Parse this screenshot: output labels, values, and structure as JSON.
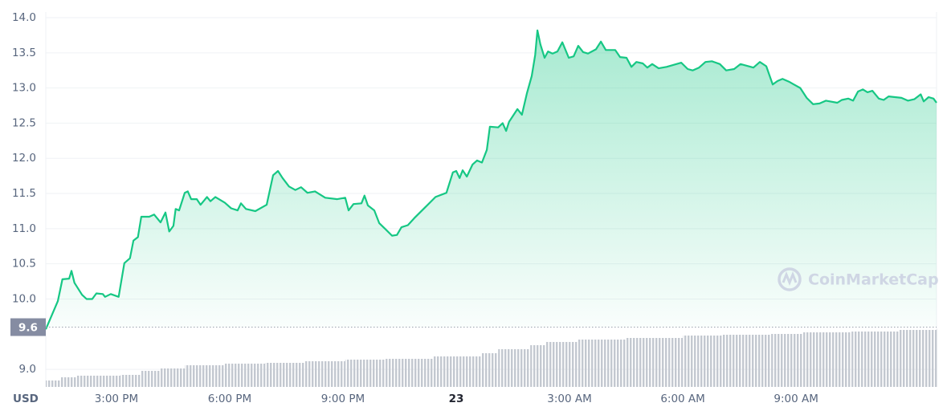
{
  "chart_data": {
    "type": "line",
    "y_unit": "USD",
    "watermark": "CoinMarketCap",
    "color": "#16c784",
    "baseline": 9.6,
    "x": [
      13.13,
      13.45,
      13.57,
      13.75,
      13.81,
      13.89,
      14.09,
      14.21,
      14.36,
      14.47,
      14.64,
      14.7,
      14.85,
      15.06,
      15.21,
      15.36,
      15.45,
      15.57,
      15.66,
      15.87,
      16.0,
      16.17,
      16.3,
      16.4,
      16.51,
      16.57,
      16.66,
      16.81,
      16.89,
      16.98,
      17.13,
      17.23,
      17.4,
      17.49,
      17.62,
      17.87,
      18.04,
      18.21,
      18.3,
      18.43,
      18.68,
      18.98,
      19.15,
      19.28,
      19.4,
      19.57,
      19.74,
      19.89,
      20.06,
      20.26,
      20.53,
      20.85,
      21.06,
      21.15,
      21.28,
      21.49,
      21.57,
      21.66,
      21.83,
      21.96,
      22.13,
      22.3,
      22.43,
      22.55,
      22.72,
      22.89,
      23.19,
      23.45,
      23.74,
      23.91,
      24.0,
      24.09,
      24.17,
      24.28,
      24.43,
      24.55,
      24.68,
      24.81,
      24.89,
      25.11,
      25.23,
      25.32,
      25.4,
      25.62,
      25.74,
      25.87,
      26.0,
      26.09,
      26.15,
      26.23,
      26.34,
      26.43,
      26.55,
      26.68,
      26.81,
      26.98,
      27.11,
      27.23,
      27.36,
      27.49,
      27.7,
      27.83,
      27.96,
      28.21,
      28.34,
      28.51,
      28.64,
      28.77,
      28.94,
      29.06,
      29.19,
      29.36,
      29.57,
      29.96,
      30.13,
      30.26,
      30.43,
      30.6,
      30.77,
      30.98,
      31.15,
      31.36,
      31.53,
      31.87,
      32.04,
      32.21,
      32.38,
      32.51,
      32.64,
      32.81,
      32.94,
      33.11,
      33.28,
      33.45,
      33.62,
      33.79,
      34.09,
      34.21,
      34.38,
      34.51,
      34.64,
      34.77,
      34.89,
      35.02,
      35.19,
      35.32,
      35.45,
      35.79,
      35.96,
      36.13,
      36.3,
      36.38,
      36.51,
      36.64,
      36.72
    ],
    "values": [
      9.57,
      9.97,
      10.28,
      10.29,
      10.4,
      10.23,
      10.06,
      10.0,
      10.0,
      10.08,
      10.07,
      10.03,
      10.07,
      10.03,
      10.51,
      10.58,
      10.83,
      10.88,
      11.17,
      11.17,
      11.2,
      11.09,
      11.23,
      10.96,
      11.04,
      11.28,
      11.26,
      11.51,
      11.53,
      11.42,
      11.42,
      11.34,
      11.45,
      11.39,
      11.45,
      11.37,
      11.29,
      11.26,
      11.36,
      11.28,
      11.25,
      11.34,
      11.76,
      11.82,
      11.72,
      11.6,
      11.55,
      11.59,
      11.51,
      11.53,
      11.44,
      11.42,
      11.44,
      11.26,
      11.35,
      11.36,
      11.47,
      11.33,
      11.26,
      11.08,
      10.99,
      10.9,
      10.91,
      11.02,
      11.05,
      11.15,
      11.31,
      11.45,
      11.51,
      11.8,
      11.82,
      11.72,
      11.83,
      11.74,
      11.91,
      11.97,
      11.94,
      12.12,
      12.45,
      12.44,
      12.5,
      12.39,
      12.52,
      12.7,
      12.62,
      12.92,
      13.17,
      13.47,
      13.82,
      13.62,
      13.43,
      13.52,
      13.49,
      13.52,
      13.65,
      13.43,
      13.45,
      13.6,
      13.51,
      13.49,
      13.55,
      13.66,
      13.54,
      13.54,
      13.44,
      13.43,
      13.3,
      13.37,
      13.35,
      13.29,
      13.34,
      13.28,
      13.3,
      13.36,
      13.27,
      13.25,
      13.29,
      13.37,
      13.38,
      13.34,
      13.25,
      13.27,
      13.34,
      13.29,
      13.37,
      13.31,
      13.05,
      13.1,
      13.13,
      13.09,
      13.05,
      13.0,
      12.86,
      12.77,
      12.78,
      12.82,
      12.79,
      12.83,
      12.85,
      12.82,
      12.95,
      12.98,
      12.94,
      12.96,
      12.85,
      12.83,
      12.88,
      12.86,
      12.82,
      12.84,
      12.91,
      12.81,
      12.87,
      12.85,
      12.79
    ],
    "volume": {
      "color": "#c3c8d0",
      "x": [
        13.13,
        13.51,
        13.94,
        15.11,
        15.64,
        16.17,
        16.81,
        17.87,
        18.94,
        20.0,
        21.06,
        22.13,
        23.4,
        24.68,
        25.11,
        25.96,
        26.38,
        27.23,
        28.51,
        30.0,
        31.06,
        32.34,
        33.19,
        34.47,
        35.74,
        36.72
      ],
      "values": [
        8,
        12,
        14,
        15,
        20,
        23,
        27,
        29,
        30,
        32,
        34,
        35,
        38,
        42,
        47,
        52,
        56,
        59,
        61,
        64,
        65,
        66,
        68,
        69,
        71,
        72
      ],
      "vlim": [
        0,
        80
      ]
    },
    "xlim": [
      13.13,
      36.72
    ],
    "ylim": [
      8.75,
      14.08
    ],
    "xticks": [
      {
        "value": 15,
        "label": "3:00 PM"
      },
      {
        "value": 18,
        "label": "6:00 PM"
      },
      {
        "value": 21,
        "label": "9:00 PM"
      },
      {
        "value": 24,
        "label": "23"
      },
      {
        "value": 27,
        "label": "3:00 AM"
      },
      {
        "value": 30,
        "label": "6:00 AM"
      },
      {
        "value": 33,
        "label": "9:00 AM"
      }
    ],
    "yticks": [
      {
        "value": 9.0,
        "label": "9.0"
      },
      {
        "value": 10.0,
        "label": "10.0"
      },
      10.5,
      {
        "value": 11.0,
        "label": "11.0"
      },
      11.5,
      {
        "value": 12.0,
        "label": "12.0"
      },
      12.5,
      {
        "value": 13.0,
        "label": "13.0"
      },
      13.5,
      {
        "value": 14.0,
        "label": "14.0"
      }
    ],
    "grid": true
  }
}
